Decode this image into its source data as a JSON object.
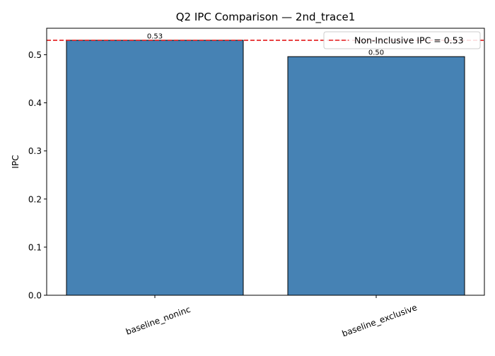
{
  "chart_data": {
    "type": "bar",
    "title": "Q2 IPC Comparison — 2nd_trace1",
    "xlabel": "",
    "ylabel": "IPC",
    "categories": [
      "baseline_noninc",
      "baseline_exclusive"
    ],
    "values": [
      0.53,
      0.496
    ],
    "data_labels": [
      "0.53",
      "0.50"
    ],
    "ylim": [
      0,
      0.555
    ],
    "yticks": [
      0.0,
      0.1,
      0.2,
      0.3,
      0.4,
      0.5
    ],
    "ytick_labels": [
      "0.0",
      "0.1",
      "0.2",
      "0.3",
      "0.4",
      "0.5"
    ],
    "reference_line": {
      "value": 0.53,
      "label": "Non-Inclusive IPC = 0.53",
      "style": "dashed",
      "color": "#e41a1c"
    },
    "bar_color": "#4682b4",
    "bar_edge_color": "#000000",
    "legend_position": "top-right",
    "grid": false
  }
}
